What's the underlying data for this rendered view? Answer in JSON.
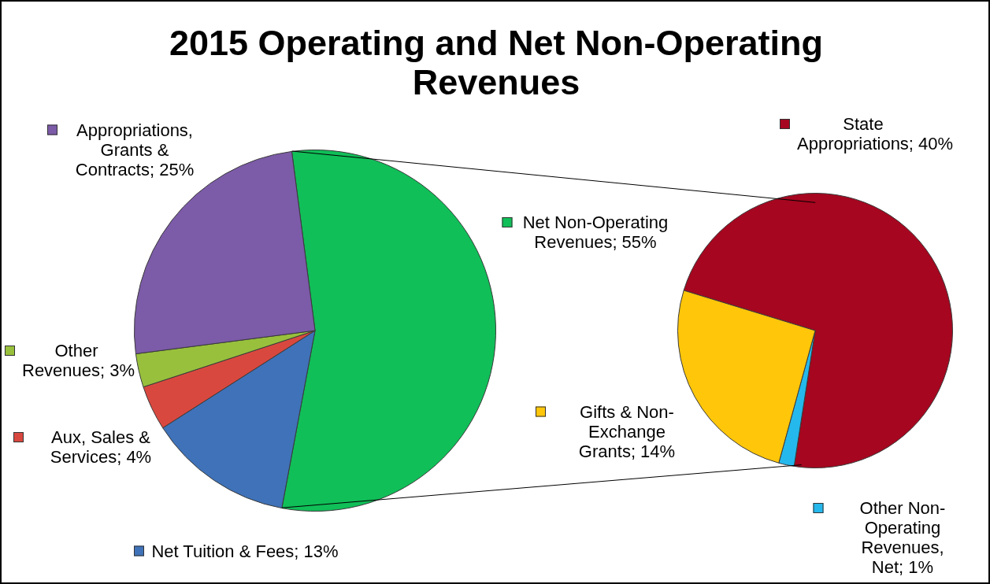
{
  "chart_data": [
    {
      "type": "pie",
      "title": "2015 Operating and Net Non-Operating Revenues",
      "categories": [
        "Net Non-Operating Revenues",
        "Net Tuition & Fees",
        "Aux, Sales & Services",
        "Other Revenues",
        "Appropriations, Grants & Contracts"
      ],
      "values": [
        55,
        13,
        4,
        3,
        25
      ],
      "value_labels": [
        "55%",
        "13%",
        "4%",
        "3%",
        "25%"
      ],
      "colors": [
        "#10bf58",
        "#3f72b8",
        "#d9483f",
        "#98c03c",
        "#7c5ba8"
      ],
      "legend": "bottom right"
    },
    {
      "type": "pie",
      "categories": [
        "State Appropriations",
        "Other Non-Operating Revenues, Net",
        "Gifts & Non-Exchange Grants"
      ],
      "values": [
        40,
        1,
        14
      ],
      "value_labels": [
        "40%",
        "1%",
        "14%"
      ],
      "colors": [
        "#a6061f",
        "#25b8ec",
        "#ffc60a"
      ],
      "legend": "bottom left"
    }
  ]
}
